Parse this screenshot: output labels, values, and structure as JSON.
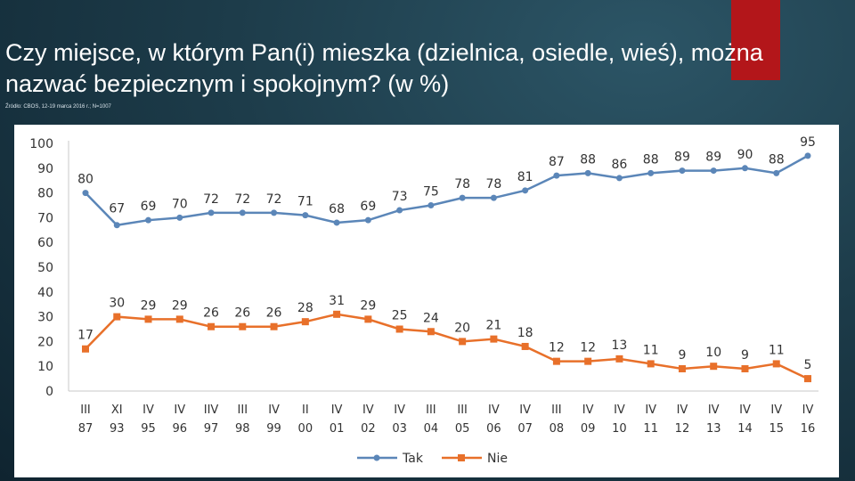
{
  "title": "Czy miejsce, w którym Pan(i) mieszka (dzielnica, osiedle, wieś), można nazwać bezpiecznym i spokojnym? (w %)",
  "source": "Źródło: CBOS, 12-19 marca 2016 r.; N=1007",
  "colors": {
    "accent": "#b3161a",
    "tak": "#5b86b8",
    "nie": "#e8702a",
    "background": "#1d3c4a"
  },
  "chart_data": {
    "type": "line",
    "categories": [
      [
        "III",
        "87"
      ],
      [
        "XI",
        "93"
      ],
      [
        "IV",
        "95"
      ],
      [
        "IV",
        "96"
      ],
      [
        "IIV",
        "97"
      ],
      [
        "III",
        "98"
      ],
      [
        "IV",
        "99"
      ],
      [
        "II",
        "00"
      ],
      [
        "IV",
        "01"
      ],
      [
        "IV",
        "02"
      ],
      [
        "IV",
        "03"
      ],
      [
        "III",
        "04"
      ],
      [
        "III",
        "05"
      ],
      [
        "IV",
        "06"
      ],
      [
        "IV",
        "07"
      ],
      [
        "III",
        "08"
      ],
      [
        "IV",
        "09"
      ],
      [
        "IV",
        "10"
      ],
      [
        "IV",
        "11"
      ],
      [
        "IV",
        "12"
      ],
      [
        "IV",
        "13"
      ],
      [
        "IV",
        "14"
      ],
      [
        "IV",
        "15"
      ],
      [
        "IV",
        "16"
      ]
    ],
    "series": [
      {
        "name": "Tak",
        "values": [
          80,
          67,
          69,
          70,
          72,
          72,
          72,
          71,
          68,
          69,
          73,
          75,
          78,
          78,
          81,
          87,
          88,
          86,
          88,
          89,
          89,
          90,
          88,
          95
        ]
      },
      {
        "name": "Nie",
        "values": [
          17,
          30,
          29,
          29,
          26,
          26,
          26,
          28,
          31,
          29,
          25,
          24,
          20,
          21,
          18,
          12,
          12,
          13,
          11,
          9,
          10,
          9,
          11,
          5
        ]
      }
    ],
    "yticks": [
      0,
      10,
      20,
      30,
      40,
      50,
      60,
      70,
      80,
      90,
      100
    ],
    "ylim": [
      0,
      100
    ],
    "grid": false,
    "legend": "bottom-center"
  }
}
